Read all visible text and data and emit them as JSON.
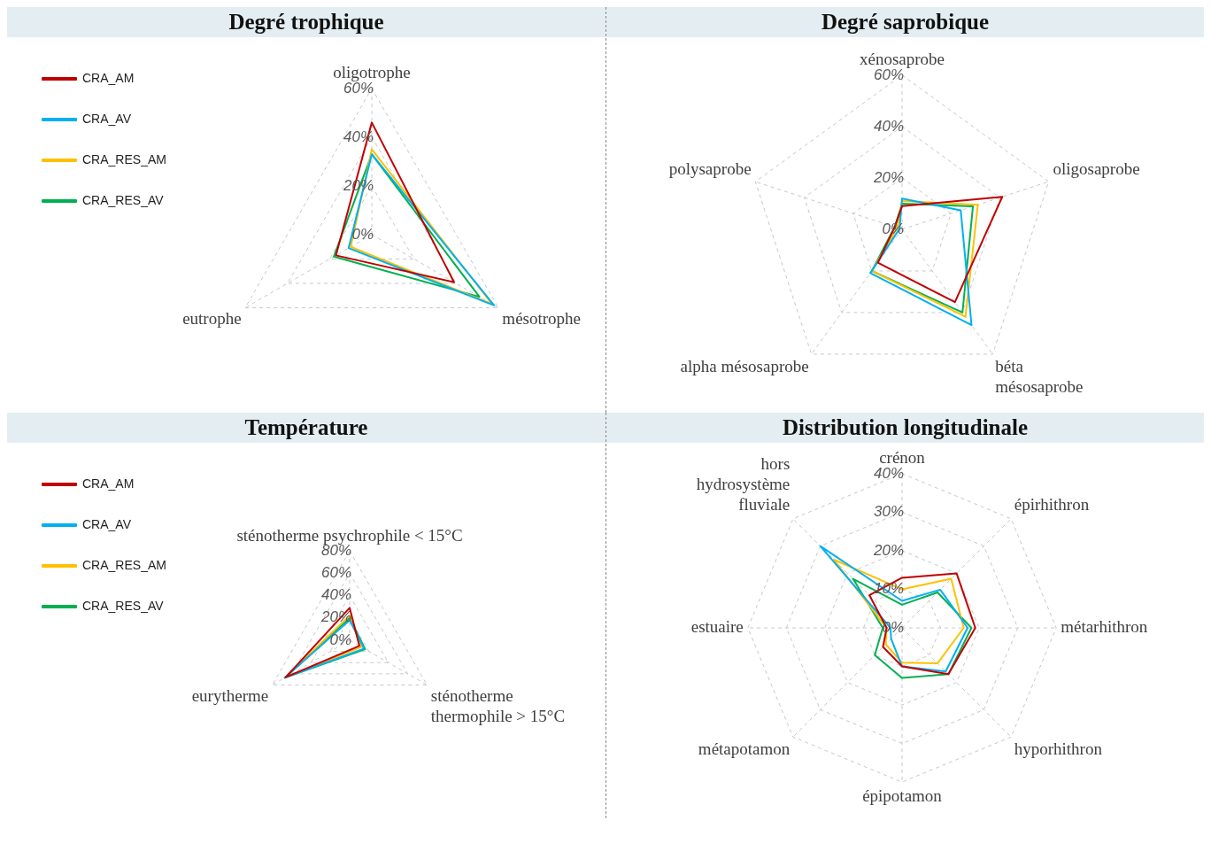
{
  "chart_data": [
    {
      "type": "radar",
      "title": "Degré trophique",
      "categories": [
        "oligotrophe",
        "mésotrophe",
        "eutrophe"
      ],
      "series": [
        {
          "name": "CRA_AM",
          "color": "#c00000",
          "values": [
            46,
            39,
            17
          ]
        },
        {
          "name": "CRA_AV",
          "color": "#00b0f0",
          "values": [
            33,
            58,
            11
          ]
        },
        {
          "name": "CRA_RES_AM",
          "color": "#ffc000",
          "values": [
            35,
            57,
            10
          ]
        },
        {
          "name": "CRA_RES_AV",
          "color": "#00b050",
          "values": [
            33,
            51,
            18
          ]
        }
      ],
      "ylim": [
        0,
        60
      ],
      "yticks": [
        {
          "value": 0,
          "label": "0%"
        },
        {
          "value": 20,
          "label": "20%"
        },
        {
          "value": 40,
          "label": "40%"
        },
        {
          "value": 60,
          "label": "60%"
        }
      ],
      "grid": true,
      "legend": "top left",
      "marker": "none",
      "line_style": "solid"
    },
    {
      "type": "radar",
      "title": "Degré saprobique",
      "categories": [
        "xénosaprobe",
        "oligosaprobe",
        "béta\nmésosaprobe",
        "alpha mésosaprobe",
        "polysaprobe"
      ],
      "series": [
        {
          "color": "#c00000",
          "values": [
            9,
            41,
            35,
            16,
            3
          ]
        },
        {
          "color": "#00b0f0",
          "values": [
            12,
            24,
            46,
            21,
            1
          ]
        },
        {
          "color": "#ffc000",
          "values": [
            11,
            31,
            42,
            20,
            2
          ]
        },
        {
          "color": "#00b050",
          "values": [
            10,
            29,
            40,
            20,
            3
          ]
        }
      ],
      "ylim": [
        0,
        60
      ],
      "yticks": [
        {
          "value": 0,
          "label": "0%"
        },
        {
          "value": 20,
          "label": "20%"
        },
        {
          "value": 40,
          "label": "40%"
        },
        {
          "value": 60,
          "label": "60%"
        }
      ],
      "grid": true,
      "marker": "none",
      "line_style": "solid"
    },
    {
      "type": "radar",
      "title": "Température",
      "categories": [
        "sténotherme psychrophile < 15°C",
        "sténotherme\nthermophile > 15°C",
        "eurytherme"
      ],
      "series": [
        {
          "name": "CRA_AM",
          "color": "#c00000",
          "values": [
            29,
            10,
            66
          ]
        },
        {
          "name": "CRA_AV",
          "color": "#00b0f0",
          "values": [
            18,
            15,
            67
          ]
        },
        {
          "name": "CRA_RES_AM",
          "color": "#ffc000",
          "values": [
            22,
            12,
            67
          ]
        },
        {
          "name": "CRA_RES_AV",
          "color": "#00b050",
          "values": [
            20,
            16,
            67
          ]
        }
      ],
      "ylim": [
        0,
        80
      ],
      "yticks": [
        {
          "value": 0,
          "label": "0%"
        },
        {
          "value": 20,
          "label": "20%"
        },
        {
          "value": 40,
          "label": "40%"
        },
        {
          "value": 60,
          "label": "60%"
        },
        {
          "value": 80,
          "label": "80%"
        }
      ],
      "grid": true,
      "legend": "top left",
      "marker": "none",
      "line_style": "solid"
    },
    {
      "type": "radar",
      "title": "Distribution longitudinale",
      "categories": [
        "crénon",
        "épirhithron",
        "métarhithron",
        "hyporhithron",
        "épipotamon",
        "métapotamon",
        "estuaire",
        "hors\nhydrosystème\nfluviale"
      ],
      "series": [
        {
          "color": "#c00000",
          "values": [
            13,
            20,
            19,
            17,
            10,
            7,
            4,
            12
          ]
        },
        {
          "color": "#00b0f0",
          "values": [
            7,
            14,
            17,
            16,
            10,
            4,
            3,
            30
          ]
        },
        {
          "color": "#ffc000",
          "values": [
            10,
            18,
            16,
            13,
            9,
            6,
            4,
            25
          ]
        },
        {
          "color": "#00b050",
          "values": [
            6,
            13,
            18,
            17,
            13,
            10,
            5,
            18
          ]
        }
      ],
      "ylim": [
        0,
        40
      ],
      "yticks": [
        {
          "value": 0,
          "label": "0%"
        },
        {
          "value": 10,
          "label": "10%"
        },
        {
          "value": 20,
          "label": "20%"
        },
        {
          "value": 30,
          "label": "30%"
        },
        {
          "value": 40,
          "label": "40%"
        }
      ],
      "grid": true,
      "marker": "none",
      "line_style": "solid"
    }
  ]
}
